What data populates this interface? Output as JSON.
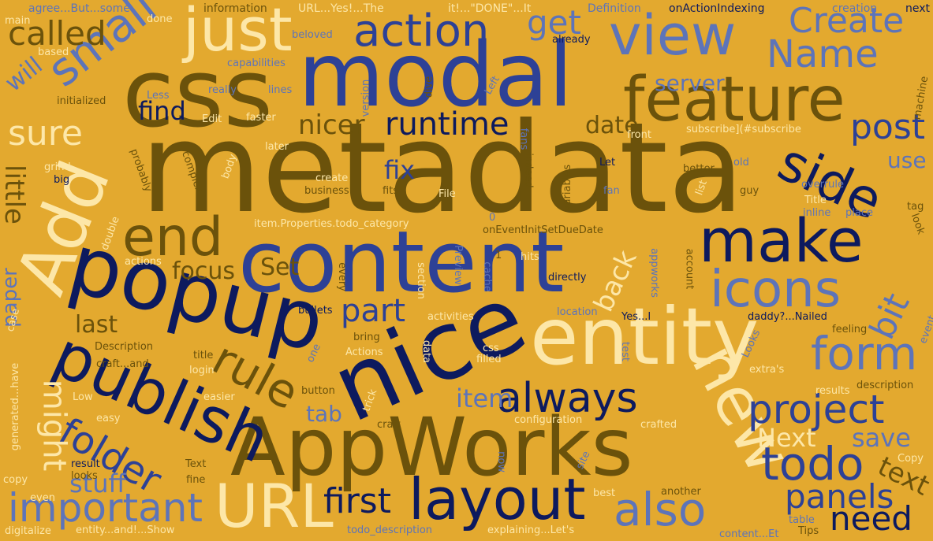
{
  "palette": {
    "background": "#e3a92f",
    "navy": "#0d1a5e",
    "blue": "#2d4196",
    "periwinkle": "#5d74b9",
    "olive": "#6b520b",
    "cream": "#fde7a8"
  },
  "words": {
    "metadata": "metadata",
    "content": "content",
    "css": "css",
    "modal": "modal",
    "appworks": "AppWorks",
    "popup": "popup",
    "nice": "nice",
    "entity": "entity",
    "publish": "publish",
    "feature": "feature",
    "make": "make",
    "add": "Add",
    "just": "just",
    "view": "view",
    "layout": "layout",
    "new": "new",
    "icons": "icons",
    "side": "side",
    "url": "URL",
    "folder": "folder",
    "action": "action",
    "end": "end",
    "project": "project",
    "always": "always",
    "important": "important",
    "form": "form",
    "rule": "rule",
    "todo": "todo",
    "also": "also",
    "small": "small",
    "runtime": "runtime",
    "called": "called",
    "sure": "sure",
    "create": "Create",
    "name": "Name",
    "panels": "panels",
    "need": "need",
    "post": "post",
    "first": "first",
    "part": "part",
    "little": "little",
    "might": "might",
    "bit": "bit",
    "get": "get",
    "nicer": "nicer",
    "focus": "focus",
    "back": "back",
    "set": "Set",
    "last": "last",
    "item": "item",
    "fix": "fix",
    "date": "date",
    "find": "find",
    "will": "will",
    "stuff": "stuff",
    "next": "Next",
    "save": "save",
    "text": "text",
    "tab": "tab",
    "server": "server",
    "use": "use",
    "paper": "paper",
    "t_agree": "agree...But...some",
    "t_information": "information",
    "t_urlyes": "URL...Yes!...The",
    "t_itdone": "it!...\"DONE\"...It",
    "t_definition": "Definition",
    "t_onaction": "onActionIndexing",
    "t_creation": "creation",
    "t_next": "next",
    "t_main": "main",
    "t_done": "done",
    "t_beloved": "beloved",
    "t_already": "already",
    "t_based": "based",
    "t_capabilities": "capabilities",
    "t_initialized": "initialized",
    "t_really": "really",
    "t_lines": "lines",
    "t_less": "Less",
    "t_edit": "Edit",
    "t_faster": "faster",
    "t_subscribe": "subscribe](#subscribe",
    "t_front": "front",
    "t_later": "later",
    "t_create_s": "create",
    "t_grind": "grind",
    "t_big": "big",
    "t_business": "business",
    "t_fits": "fits",
    "t_file": "File",
    "t_let": "Let",
    "t_better": "better",
    "t_old": "old",
    "t_fan": "fan",
    "t_guy": "guy",
    "t_overrule": "overrule",
    "t_title": "Title",
    "t_inline": "inline",
    "t_place": "place",
    "t_tag": "tag",
    "t_item_props": "item.Properties.todo_category",
    "t_oneventinit": "onEventInitSetDueDate",
    "t_zero": "0",
    "t_actions": "actions",
    "t_every": "every",
    "t_preview": "Preview",
    "t_cache": "cache",
    "t_hits": "hits",
    "t_directly": "directly",
    "t_account": "account",
    "t_bullets": "bullets",
    "t_activities": "activities",
    "t_location": "location",
    "t_yes": "Yes...I",
    "t_daddy": "daddy?...Nailed",
    "t_feeling": "feeling",
    "t_description": "Description",
    "t_bring": "bring",
    "t_actions2": "Actions",
    "t_css_s": "css",
    "t_filled": "filled",
    "t_test": "test",
    "t_title_s": "title",
    "t_craft_and": "craft...and",
    "t_login": "login",
    "t_extras": "extra's",
    "t_results": "results",
    "t_description_s": "description",
    "t_low": "Low",
    "t_easier": "easier",
    "t_button": "button",
    "t_trick": "trick",
    "t_easy": "easy",
    "t_craft": "craft",
    "t_configuration": "configuration",
    "t_crafted": "crafted",
    "t_result": "result",
    "t_text_s": "Text",
    "t_looks": "looks",
    "t_copy": "copy",
    "t_copy_cap": "Copy",
    "t_fine": "fine",
    "t_even": "even",
    "t_digitalize": "digitalize",
    "t_entity_and": "entity...and!...Show",
    "t_todo_desc": "todo_description",
    "t_explaining": "explaining...Let's",
    "t_best": "best",
    "t_another": "another",
    "t_table": "table",
    "t_content_et": "content...Et",
    "t_tips": "Tips",
    "t_case": "case",
    "t_generated": "generated...have",
    "t_section": "section",
    "t_data": "data",
    "t_one": "one",
    "t_site": "site",
    "t_now": "now",
    "t_body": "body",
    "t_complex": "complex",
    "t_probably": "probably",
    "t_double": "double",
    "t_indeed": "indeed",
    "t_variables": "variables",
    "t_fans": "fans",
    "t_dive": "dive",
    "t_version": "version",
    "t_left": "Left",
    "t_machine": "machine",
    "t_look": "look",
    "t_event": "event",
    "t_list": "list",
    "t_appworks_s": "appworks",
    "t_looks_cap": "Looks",
    "t_one_digit": "1"
  }
}
